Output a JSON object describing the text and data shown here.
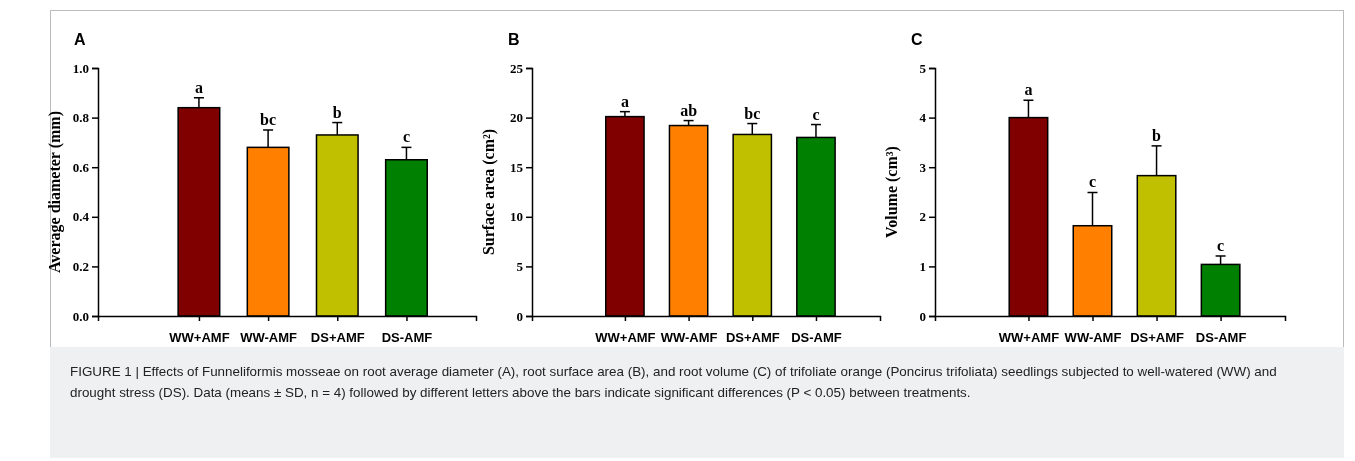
{
  "chart_data": [
    {
      "type": "bar",
      "title": "A",
      "ylabel": "Average diameter (mm)",
      "categories": [
        "WW+AMF",
        "WW-AMF",
        "DS+AMF",
        "DS-AMF"
      ],
      "values": [
        0.84,
        0.68,
        0.73,
        0.63
      ],
      "errors": [
        0.04,
        0.07,
        0.05,
        0.05
      ],
      "colors": [
        "#800000",
        "#ff8000",
        "#c0c000",
        "#008000"
      ],
      "ylim": [
        0,
        1
      ],
      "yticks": [
        {
          "value": 0,
          "label": "0.0"
        },
        {
          "value": 0.2,
          "label": "0.2"
        },
        {
          "value": 0.4,
          "label": "0.4"
        },
        {
          "value": 0.6,
          "label": "0.6"
        },
        {
          "value": 0.8,
          "label": "0.8"
        },
        {
          "value": 1,
          "label": "1.0"
        }
      ],
      "annotations": [
        {
          "text": "a",
          "x": "WW+AMF",
          "y": 0.88
        },
        {
          "text": "bc",
          "x": "WW-AMF",
          "y": 0.75
        },
        {
          "text": "b",
          "x": "DS+AMF",
          "y": 0.78
        },
        {
          "text": "c",
          "x": "DS-AMF",
          "y": 0.68
        },
        "FIGURE 1 | Effects of Funneliformis mosseae on root average diameter (A), root surface area (B), and root volume (C) of trifoliate orange (Poncirus trifoliata) seedlings subjected to well-watered (WW) and drought stress (DS). Data (means ± SD, n = 4) followed by different letters above the bars indicate significant differences (P < 0.05) between treatments."
      ]
    },
    {
      "type": "bar",
      "title": "B",
      "ylabel": "Surface area (cm²)",
      "categories": [
        "WW+AMF",
        "WW-AMF",
        "DS+AMF",
        "DS-AMF"
      ],
      "values": [
        20.1,
        19.2,
        18.3,
        18.0
      ],
      "errors": [
        0.5,
        0.5,
        1.1,
        1.3
      ],
      "colors": [
        "#800000",
        "#ff8000",
        "#c0c000",
        "#008000"
      ],
      "ylim": [
        0,
        25
      ],
      "yticks": [
        0,
        5,
        10,
        15,
        20,
        25
      ],
      "annotations": [
        {
          "text": "a",
          "x": "WW+AMF",
          "y": 20.6
        },
        {
          "text": "ab",
          "x": "WW-AMF",
          "y": 19.7
        },
        {
          "text": "bc",
          "x": "DS+AMF",
          "y": 19.4
        },
        {
          "text": "c",
          "x": "DS-AMF",
          "y": 19.3
        }
      ]
    },
    {
      "type": "bar",
      "title": "C",
      "ylabel": "Volume (cm³)",
      "categories": [
        "WW+AMF",
        "WW-AMF",
        "DS+AMF",
        "DS-AMF"
      ],
      "values": [
        4.0,
        1.82,
        2.83,
        1.04
      ],
      "errors": [
        0.35,
        0.67,
        0.6,
        0.17
      ],
      "colors": [
        "#800000",
        "#ff8000",
        "#c0c000",
        "#008000"
      ],
      "ylim": [
        0,
        5
      ],
      "yticks": [
        0,
        1,
        2,
        3,
        4,
        5
      ],
      "annotations": [
        {
          "text": "a",
          "x": "WW+AMF",
          "y": 4.35
        },
        {
          "text": "c",
          "x": "WW-AMF",
          "y": 2.49
        },
        {
          "text": "b",
          "x": "DS+AMF",
          "y": 3.43
        },
        {
          "text": "c",
          "x": "DS-AMF",
          "y": 1.21
        }
      ]
    }
  ]
}
